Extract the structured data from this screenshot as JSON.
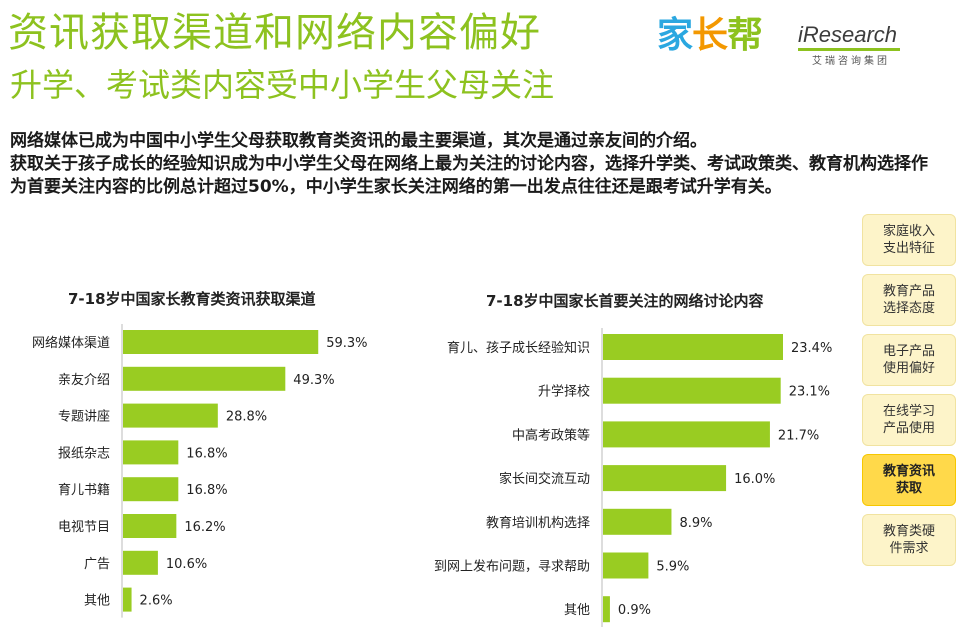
{
  "header": {
    "title": "资讯获取渠道和网络内容偏好",
    "subtitle": "升学、考试类内容受中小学生父母关注"
  },
  "logos": {
    "jiazhangbang": [
      "家",
      "长",
      "帮"
    ],
    "iresearch_main": "Research",
    "iresearch_i": "i",
    "iresearch_sub": "艾瑞咨询集团"
  },
  "description": {
    "line1": "网络媒体已成为中国中小学生父母获取教育类资讯的最主要渠道，其次是通过亲友间的介绍。",
    "line2": "获取关于孩子成长的经验知识成为中小学生父母在网络上最为关注的讨论内容，选择升学类、考试政策类、教育机构选择作为首要关注内容的比例总计超过50%，中小学生家长关注网络的第一出发点往往还是跟考试升学有关。"
  },
  "side_nav": [
    {
      "label": "家庭收入支出特征",
      "active": false
    },
    {
      "label": "教育产品选择态度",
      "active": false
    },
    {
      "label": "电子产品使用偏好",
      "active": false
    },
    {
      "label": "在线学习产品使用",
      "active": false
    },
    {
      "label": "教育资讯获取",
      "active": true
    },
    {
      "label": "教育类硬件需求",
      "active": false
    }
  ],
  "colors": {
    "accent": "#8dc21f",
    "bar": "#99cc22",
    "nav_bg": "#fdf4c9",
    "nav_active": "#ffd94a"
  },
  "chart_data": [
    {
      "type": "bar",
      "orientation": "horizontal",
      "title": "7-18岁中国家长教育类资讯获取渠道",
      "categories": [
        "网络媒体渠道",
        "亲友介绍",
        "专题讲座",
        "报纸杂志",
        "育儿书籍",
        "电视节目",
        "广告",
        "其他"
      ],
      "values": [
        59.3,
        49.3,
        28.8,
        16.8,
        16.8,
        16.2,
        10.6,
        2.6
      ],
      "value_labels": [
        "59.3%",
        "49.3%",
        "28.8%",
        "16.8%",
        "16.8%",
        "16.2%",
        "10.6%",
        "2.6%"
      ],
      "unit": "%",
      "xlim": [
        0,
        65
      ]
    },
    {
      "type": "bar",
      "orientation": "horizontal",
      "title": "7-18岁中国家长首要关注的网络讨论内容",
      "categories": [
        "育儿、孩子成长经验知识",
        "升学择校",
        "中高考政策等",
        "家长间交流互动",
        "教育培训机构选择",
        "到网上发布问题，寻求帮助",
        "其他"
      ],
      "values": [
        23.4,
        23.1,
        21.7,
        16.0,
        8.9,
        5.9,
        0.9
      ],
      "value_labels": [
        "23.4%",
        "23.1%",
        "21.7%",
        "16.0%",
        "8.9%",
        "5.9%",
        "0.9%"
      ],
      "unit": "%",
      "xlim": [
        0,
        26
      ]
    }
  ]
}
